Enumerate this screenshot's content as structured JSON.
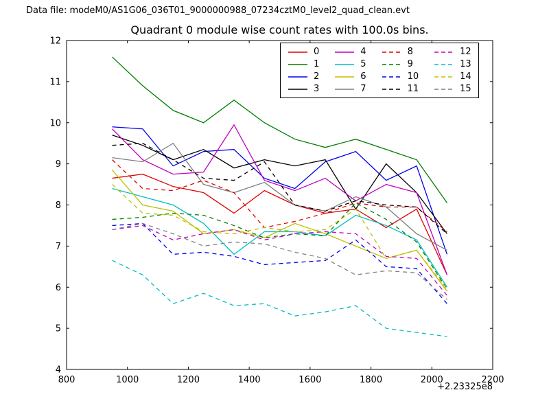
{
  "header": {
    "datafile": "Data file: modeM0/AS1G06_036T01_9000000988_07234cztM0_level2_quad_clean.evt"
  },
  "chart_data": {
    "type": "line",
    "title": "Quadrant 0 module wise count rates with 100.0s bins.",
    "xlabel": "",
    "ylabel": "",
    "x_offset_label": "+2.23325e8",
    "xlim": [
      800,
      2200
    ],
    "ylim": [
      4,
      12
    ],
    "xticks": [
      800,
      1000,
      1200,
      1400,
      1600,
      1800,
      2000,
      2200
    ],
    "yticks": [
      4,
      5,
      6,
      7,
      8,
      9,
      10,
      11,
      12
    ],
    "grid": false,
    "legend_position": "upper center inside",
    "x": [
      950,
      1050,
      1150,
      1250,
      1350,
      1450,
      1550,
      1650,
      1750,
      1850,
      1950,
      2050
    ],
    "series": [
      {
        "name": "0",
        "color": "#e00000",
        "style": "solid",
        "values": [
          8.65,
          8.75,
          8.45,
          8.3,
          7.8,
          8.35,
          8.0,
          7.8,
          7.9,
          7.45,
          7.9,
          6.3
        ]
      },
      {
        "name": "1",
        "color": "#007f00",
        "style": "solid",
        "values": [
          11.6,
          10.9,
          10.3,
          10.0,
          10.55,
          10.0,
          9.6,
          9.4,
          9.6,
          9.35,
          9.1,
          8.05
        ]
      },
      {
        "name": "2",
        "color": "#0000ee",
        "style": "solid",
        "values": [
          9.9,
          9.85,
          8.95,
          9.3,
          9.35,
          8.65,
          8.4,
          9.05,
          9.3,
          8.6,
          8.95,
          6.8
        ]
      },
      {
        "name": "3",
        "color": "#000000",
        "style": "solid",
        "values": [
          9.7,
          9.45,
          9.1,
          9.35,
          8.9,
          9.1,
          8.95,
          9.1,
          7.9,
          9.0,
          8.3,
          7.3
        ]
      },
      {
        "name": "4",
        "color": "#bf00bf",
        "style": "solid",
        "values": [
          9.85,
          9.1,
          8.75,
          8.8,
          9.95,
          8.6,
          8.35,
          8.65,
          8.1,
          8.5,
          8.3,
          6.3
        ]
      },
      {
        "name": "5",
        "color": "#00bfbf",
        "style": "solid",
        "values": [
          8.4,
          8.2,
          8.0,
          7.55,
          6.8,
          7.35,
          7.35,
          7.25,
          7.75,
          7.5,
          7.15,
          6.0
        ]
      },
      {
        "name": "6",
        "color": "#bfbf00",
        "style": "solid",
        "values": [
          8.85,
          8.0,
          7.85,
          7.3,
          7.4,
          7.2,
          7.55,
          7.3,
          7.0,
          6.7,
          6.9,
          5.9
        ]
      },
      {
        "name": "7",
        "color": "#7f7f7f",
        "style": "solid",
        "values": [
          9.15,
          9.05,
          9.5,
          8.5,
          8.3,
          8.55,
          8.0,
          7.85,
          8.2,
          7.95,
          7.3,
          6.9
        ]
      },
      {
        "name": "8",
        "color": "#e00000",
        "style": "dashed",
        "values": [
          9.1,
          8.4,
          8.35,
          8.6,
          8.3,
          7.45,
          7.6,
          7.8,
          8.05,
          7.95,
          7.95,
          7.35
        ]
      },
      {
        "name": "9",
        "color": "#007f00",
        "style": "dashed",
        "values": [
          7.65,
          7.7,
          7.8,
          7.75,
          7.5,
          7.2,
          7.3,
          7.25,
          8.05,
          7.65,
          7.1,
          5.95
        ]
      },
      {
        "name": "10",
        "color": "#0000ee",
        "style": "dashed",
        "values": [
          7.5,
          7.55,
          6.8,
          6.85,
          6.75,
          6.55,
          6.6,
          6.65,
          7.15,
          6.5,
          6.45,
          5.6
        ]
      },
      {
        "name": "11",
        "color": "#000000",
        "style": "dashed",
        "values": [
          9.45,
          9.5,
          9.1,
          8.65,
          8.6,
          9.05,
          8.0,
          7.85,
          8.1,
          8.0,
          7.95,
          7.3
        ]
      },
      {
        "name": "12",
        "color": "#bf00bf",
        "style": "dashed",
        "values": [
          7.4,
          7.5,
          7.15,
          7.3,
          7.4,
          7.15,
          7.3,
          7.35,
          7.3,
          6.75,
          6.7,
          5.8
        ]
      },
      {
        "name": "13",
        "color": "#00bfbf",
        "style": "dashed",
        "values": [
          6.65,
          6.3,
          5.6,
          5.85,
          5.55,
          5.6,
          5.3,
          5.4,
          5.55,
          5.0,
          4.9,
          4.8
        ]
      },
      {
        "name": "14",
        "color": "#bfbf00",
        "style": "dashed",
        "values": [
          8.5,
          7.8,
          7.75,
          7.35,
          7.3,
          7.45,
          7.35,
          7.4,
          7.9,
          6.7,
          6.9,
          5.95
        ]
      },
      {
        "name": "15",
        "color": "#7f7f7f",
        "style": "dashed",
        "values": [
          7.4,
          7.55,
          7.3,
          7.0,
          7.1,
          7.05,
          6.85,
          6.7,
          6.3,
          6.4,
          6.35,
          5.7
        ]
      }
    ]
  }
}
